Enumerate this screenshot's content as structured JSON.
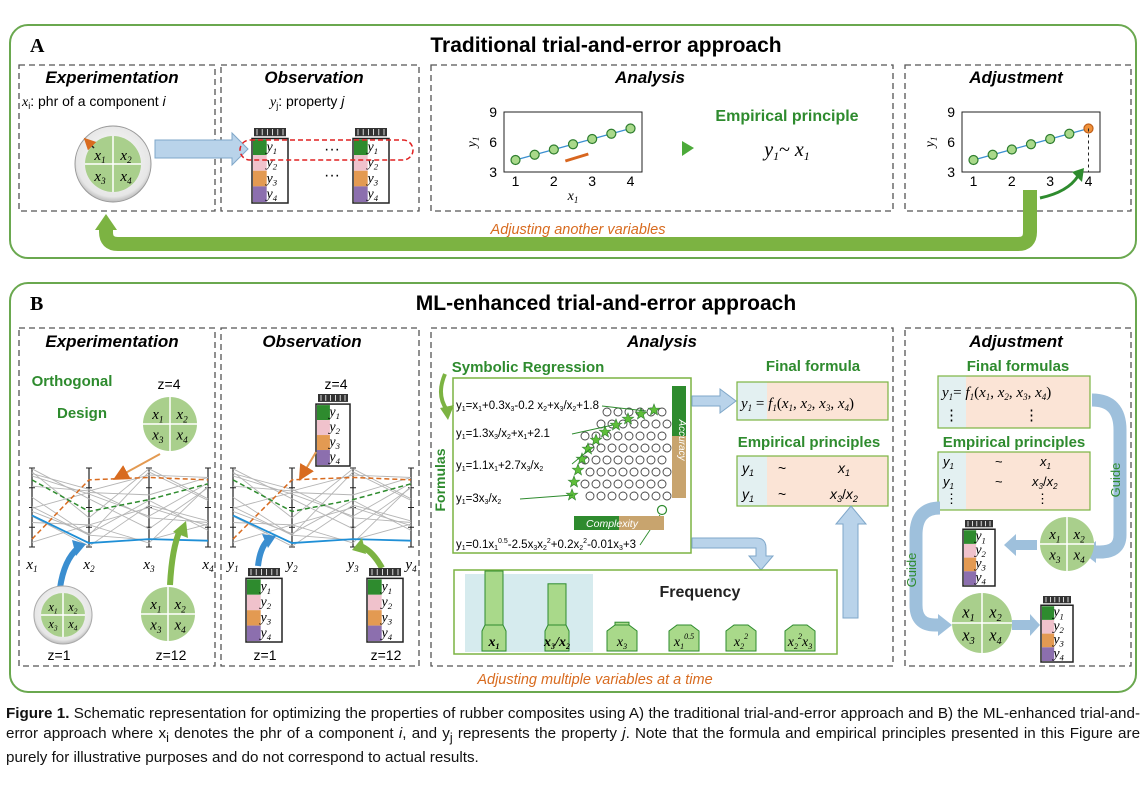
{
  "panelA": {
    "letter": "A",
    "title": "Traditional trial-and-error approach",
    "experimentation": {
      "heading": "Experimentation",
      "def_var": "x",
      "def_sub": "i",
      "def_text": ": phr of a component ",
      "def_italic": "i",
      "cells": [
        "x1",
        "x2",
        "x3",
        "x4"
      ]
    },
    "observation": {
      "heading": "Observation",
      "def_var": "y",
      "def_sub": "j",
      "def_text": ": property ",
      "def_italic": "j",
      "jar_labels": [
        "y1",
        "y2",
        "y3",
        "y4"
      ],
      "dots": "···"
    },
    "analysis": {
      "heading": "Analysis",
      "ylabel": "y1",
      "xlabel": "x1",
      "yticks": [
        "3",
        "6",
        "9"
      ],
      "xticks": [
        "1",
        "2",
        "3",
        "4"
      ],
      "principle_title": "Empirical principle",
      "principle": "y1 ~ x1"
    },
    "adjustment": {
      "heading": "Adjustment",
      "ylabel": "y1",
      "xlabel": "x1",
      "yticks": [
        "3",
        "6",
        "9"
      ],
      "xticks": [
        "1",
        "2",
        "3",
        "4"
      ]
    },
    "loop_label": "Adjusting another variables"
  },
  "panelB": {
    "letter": "B",
    "title": "ML-enhanced trial-and-error approach",
    "experimentation": {
      "heading": "Experimentation",
      "orthogonal_1": "Orthogonal",
      "orthogonal_2": "Design",
      "z_labels": [
        "z=4",
        "z=1",
        "z=12"
      ],
      "axes": [
        "x1",
        "x2",
        "x3",
        "x4"
      ]
    },
    "observation": {
      "heading": "Observation",
      "z_labels": [
        "z=4",
        "z=1",
        "z=12"
      ],
      "axes": [
        "y1",
        "y2",
        "y3",
        "y4"
      ]
    },
    "analysis": {
      "heading": "Analysis",
      "sr_title": "Symbolic Regression",
      "formulas_label": "Formulas",
      "formulas": [
        "y1=x1+0.3x3-0.2 x2+x3/x2+1.8",
        "y1=1.3x3/x2+x1+2.1",
        "y1=1.1x1+2.7x3/x2",
        "y1=3x3/x2",
        "y1=0.1x1^0.5-2.5x3x2^2+0.2x2^2-0.01x3+3"
      ],
      "accuracy": "Accuracy",
      "complexity": "Complexity",
      "final_formula_title": "Final formula",
      "final_formula": "y1 = f1(x1, x2, x3, x4)",
      "empirical_title": "Empirical principles",
      "empirical_rows": [
        [
          "y1",
          "~",
          "x1"
        ],
        [
          "y1",
          "~",
          "x3/x2"
        ]
      ],
      "frequency_title": "Frequency",
      "frequency_labels": [
        "x1",
        "x3/x2",
        "x3",
        "x1^0.5",
        "x2^2",
        "x2^2x3"
      ],
      "frequency_values": [
        5,
        4.2,
        1.8,
        1.3,
        0.9,
        0.9
      ]
    },
    "adjustment": {
      "heading": "Adjustment",
      "final_title": "Final formulas",
      "final_formula": "y1 = f1(x1, x2, x3, x4)",
      "empirical_title": "Empirical principles",
      "empirical_rows": [
        [
          "y1",
          "~",
          "x1"
        ],
        [
          "y1",
          "~",
          "x3/x2"
        ]
      ],
      "guide": "Guide",
      "guide2": "Guide"
    },
    "loop_label": "Adjusting multiple variables at a time"
  },
  "caption": {
    "fig": "Figure 1.",
    "text": " Schematic representation for optimizing the properties of rubber composites using A) the traditional trial-and-error approach and B) the ML-enhanced trial-and-error approach where x",
    "sub_i": "i",
    "text2": " denotes the phr of a component ",
    "i": "i",
    "text3": ", and y",
    "sub_j": "j",
    "text4": " represents the property ",
    "j": "j",
    "text5": ". Note that the formula and empirical principles presented in this Figure are purely for illustrative purposes and do not correspond to actual results."
  },
  "colors": {
    "green_dark": "#2e8b2e",
    "green_light": "#a9cf8c",
    "frame": "#6aa84f",
    "orange": "#d86b1f",
    "blue": "#9ec0dc",
    "jar_top": "#3a3a3a"
  }
}
